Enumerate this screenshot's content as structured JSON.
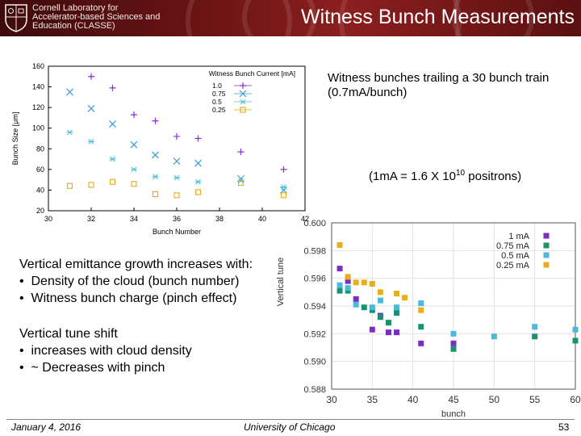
{
  "header": {
    "title": "Witness Bunch Measurements",
    "institution_lines": [
      "Cornell Laboratory for",
      "Accelerator-based Sciences and",
      "Education (CLASSE)"
    ]
  },
  "notes": {
    "witness": "Witness bunches trailing a 30 bunch train (0.7mA/bunch)",
    "conversion_prefix": "(1mA = 1.6 X 10",
    "conversion_exp": "10",
    "conversion_suffix": " positrons)"
  },
  "emittance": {
    "heading": "Vertical emittance growth increases with:",
    "items": [
      "Density of the cloud (bunch number)",
      "Witness bunch charge (pinch effect)"
    ]
  },
  "tune": {
    "heading": "Vertical tune shift",
    "items": [
      "increases with cloud density",
      "~ Decreases with pinch"
    ]
  },
  "footer": {
    "date": "January 4, 2016",
    "venue": "University of Chicago",
    "page": "53"
  },
  "chart_data": [
    {
      "type": "scatter",
      "xlabel": "Bunch Number",
      "ylabel": "Bunch Size [μm]",
      "legend_title": "Witness Bunch Current [mA]",
      "legend_position": "top-right",
      "xlim": [
        30,
        42
      ],
      "ylim": [
        20,
        160
      ],
      "xticks": [
        30,
        32,
        34,
        36,
        38,
        40,
        42
      ],
      "yticks": [
        20,
        40,
        60,
        80,
        100,
        120,
        140,
        160
      ],
      "grid": false,
      "series": [
        {
          "name": "1.0",
          "marker": "plus",
          "color": "#8a2be2",
          "x": [
            32,
            33,
            34,
            35,
            36,
            37,
            39,
            41
          ],
          "y": [
            150,
            139,
            113,
            107,
            92,
            90,
            77,
            60
          ]
        },
        {
          "name": "0.75",
          "marker": "x",
          "color": "#3a9bd6",
          "x": [
            31,
            32,
            33,
            34,
            35,
            36,
            37,
            39,
            41
          ],
          "y": [
            135,
            119,
            104,
            84,
            74,
            68,
            66,
            51,
            40
          ]
        },
        {
          "name": "0.5",
          "marker": "star",
          "color": "#4fc3d9",
          "x": [
            31,
            32,
            33,
            34,
            35,
            36,
            37,
            39,
            41
          ],
          "y": [
            96,
            87,
            70,
            60,
            53,
            52,
            48,
            49,
            43
          ]
        },
        {
          "name": "0.25",
          "marker": "square",
          "color": "#e6a817",
          "x": [
            31,
            32,
            33,
            34,
            35,
            36,
            37,
            39,
            41
          ],
          "y": [
            44,
            45,
            48,
            46,
            36,
            35,
            38,
            47,
            35
          ]
        }
      ]
    },
    {
      "type": "scatter",
      "xlabel": "bunch",
      "ylabel": "Vertical tune",
      "legend_position": "top-right",
      "xlim": [
        30,
        60
      ],
      "ylim": [
        0.588,
        0.6
      ],
      "xticks": [
        30,
        35,
        40,
        45,
        50,
        55,
        60
      ],
      "yticks": [
        0.588,
        0.59,
        0.592,
        0.594,
        0.596,
        0.598,
        0.6
      ],
      "grid": true,
      "series": [
        {
          "name": "1 mA",
          "color": "#7b2fbf",
          "x": [
            31,
            32,
            33,
            35,
            36,
            37,
            38,
            41,
            45
          ],
          "y": [
            0.5967,
            0.5958,
            0.5945,
            0.5923,
            0.5933,
            0.5921,
            0.5921,
            0.5913,
            0.5913
          ]
        },
        {
          "name": "0.75 mA",
          "color": "#1a9270",
          "x": [
            31,
            32,
            34,
            35,
            36,
            37,
            38,
            41,
            45,
            55,
            60
          ],
          "y": [
            0.5951,
            0.5951,
            0.5939,
            0.5937,
            0.5932,
            0.5928,
            0.5935,
            0.5925,
            0.5909,
            0.5918,
            0.5915
          ]
        },
        {
          "name": "0.5 mA",
          "color": "#4db8d8",
          "x": [
            31,
            32,
            33,
            35,
            36,
            38,
            41,
            45,
            50,
            55,
            60
          ],
          "y": [
            0.5955,
            0.5953,
            0.5941,
            0.5939,
            0.5944,
            0.5939,
            0.5942,
            0.592,
            0.5918,
            0.5925,
            0.5923
          ]
        },
        {
          "name": "0.25 mA",
          "color": "#e2b020",
          "x": [
            31,
            32,
            33,
            34,
            35,
            36,
            38,
            39,
            41
          ],
          "y": [
            0.5984,
            0.5961,
            0.5957,
            0.5957,
            0.5956,
            0.595,
            0.5949,
            0.5946,
            0.5937
          ]
        }
      ]
    }
  ]
}
